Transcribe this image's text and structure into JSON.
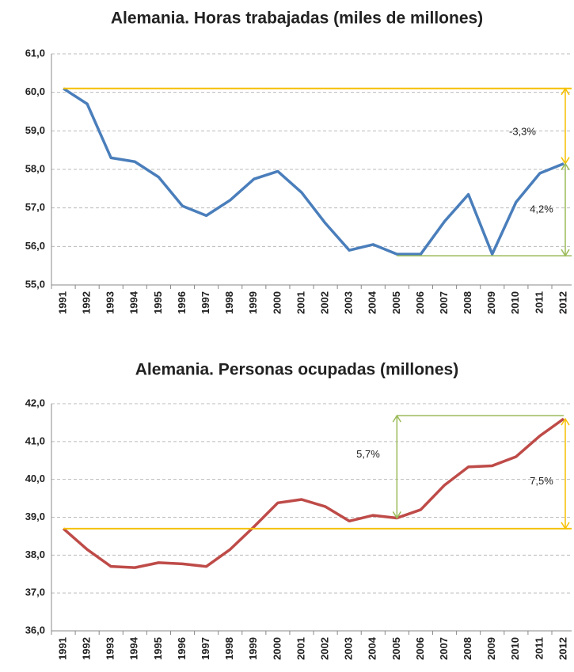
{
  "chart_data": [
    {
      "type": "line",
      "title": "Alemania. Horas trabajadas (miles de millones)",
      "categories": [
        "1991",
        "1992",
        "1993",
        "1994",
        "1995",
        "1996",
        "1997",
        "1998",
        "1999",
        "2000",
        "2001",
        "2002",
        "2003",
        "2004",
        "2005",
        "2006",
        "2007",
        "2008",
        "2009",
        "2010",
        "2011",
        "2012"
      ],
      "series": [
        {
          "color": "#4a7ebb",
          "values": [
            60.1,
            59.7,
            58.3,
            58.2,
            57.8,
            57.05,
            56.8,
            57.2,
            57.75,
            57.95,
            57.4,
            56.6,
            55.9,
            56.05,
            55.8,
            55.8,
            56.65,
            57.35,
            55.8,
            57.15,
            57.9,
            58.15
          ]
        }
      ],
      "ylim": [
        55,
        61
      ],
      "yticks": [
        {
          "value": 55,
          "label": "55,0"
        },
        {
          "value": 56,
          "label": "56,0"
        },
        {
          "value": 57,
          "label": "57,0"
        },
        {
          "value": 58,
          "label": "58,0"
        },
        {
          "value": 59,
          "label": "59,0"
        },
        {
          "value": 60,
          "label": "60,0"
        },
        {
          "value": 61,
          "label": "61,0"
        }
      ],
      "grid": true,
      "annotations": [
        {
          "text": "-3,3%",
          "color": "#c0773a"
        },
        {
          "text": "4,2%",
          "color": "#6f8f2e"
        }
      ]
    },
    {
      "type": "line",
      "title": "Alemania. Personas ocupadas (millones)",
      "categories": [
        "1991",
        "1992",
        "1993",
        "1994",
        "1995",
        "1996",
        "1997",
        "1998",
        "1999",
        "2000",
        "2001",
        "2002",
        "2003",
        "2004",
        "2005",
        "2006",
        "2007",
        "2008",
        "2009",
        "2010",
        "2011",
        "2012"
      ],
      "series": [
        {
          "color": "#be4b48",
          "values": [
            38.7,
            38.15,
            37.7,
            37.67,
            37.8,
            37.77,
            37.7,
            38.15,
            38.75,
            39.38,
            39.47,
            39.28,
            38.9,
            39.05,
            38.98,
            39.2,
            39.85,
            40.33,
            40.36,
            40.6,
            41.15,
            41.6
          ]
        }
      ],
      "ylim": [
        36,
        42
      ],
      "yticks": [
        {
          "value": 36,
          "label": "36,0"
        },
        {
          "value": 37,
          "label": "37,0"
        },
        {
          "value": 38,
          "label": "38,0"
        },
        {
          "value": 39,
          "label": "39,0"
        },
        {
          "value": 40,
          "label": "40,0"
        },
        {
          "value": 41,
          "label": "41,0"
        },
        {
          "value": 42,
          "label": "42,0"
        }
      ],
      "grid": true,
      "annotations": [
        {
          "text": "5,7%",
          "color": "#6f8f2e"
        },
        {
          "text": "7,5%",
          "color": "#c0773a"
        }
      ]
    }
  ]
}
